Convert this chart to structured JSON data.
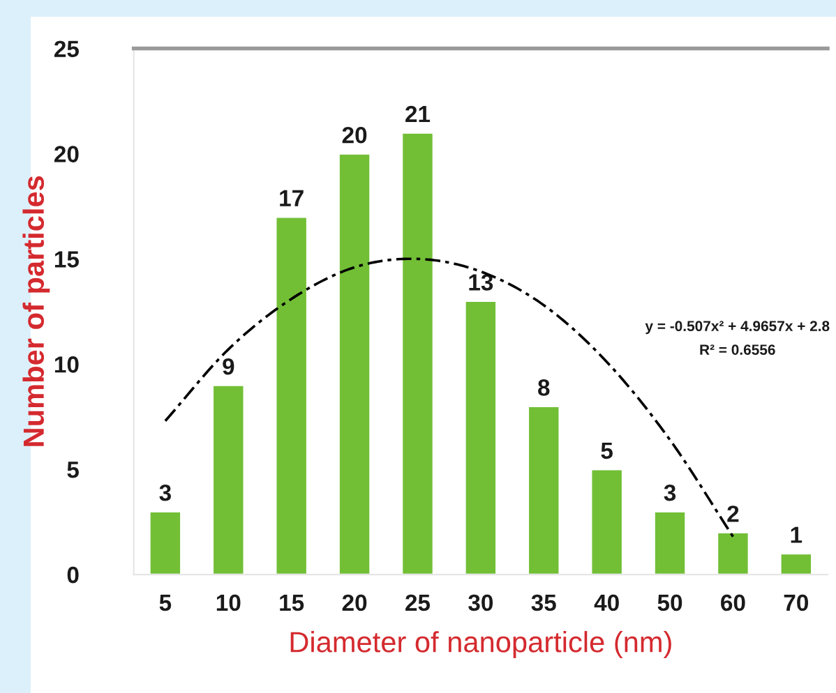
{
  "chart_data": {
    "type": "bar",
    "xlabel": "Diameter of nanoparticle (nm)",
    "ylabel": "Number of particles",
    "categories": [
      "5",
      "10",
      "15",
      "20",
      "25",
      "30",
      "35",
      "40",
      "50",
      "60",
      "70"
    ],
    "series": [
      {
        "color": "#72bf36",
        "values": [
          3,
          9,
          17,
          20,
          21,
          13,
          8,
          5,
          3,
          2,
          1
        ],
        "value_labels": [
          "3",
          "9",
          "17",
          "20",
          "21",
          "13",
          "8",
          "5",
          "3",
          "2",
          "1"
        ]
      },
      {
        "type": "line",
        "color": "#000000",
        "line_style": "dashed",
        "x": [
          "5",
          "10",
          "15",
          "20",
          "25",
          "30",
          "35",
          "40",
          "50",
          "60"
        ],
        "values": [
          7.3,
          10.7,
          13.1,
          14.6,
          15.0,
          14.4,
          12.8,
          10.1,
          6.4,
          1.8
        ]
      }
    ],
    "ylim": [
      0,
      25
    ],
    "yticks": [
      0,
      5,
      10,
      15,
      20,
      25
    ],
    "grid": false,
    "annotations": [
      "y = -0.507x² + 4.9657x + 2.8",
      "R² = 0.6556"
    ]
  }
}
